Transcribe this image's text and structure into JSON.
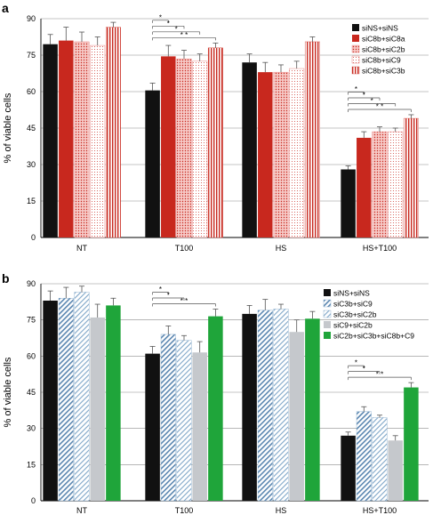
{
  "chart_data": [
    {
      "panel": "a",
      "type": "bar",
      "ylabel": "% of viable cells",
      "ylim": [
        0,
        90
      ],
      "yticks": [
        0,
        15,
        30,
        45,
        60,
        75,
        90
      ],
      "grid": true,
      "legend_placement": "top-right",
      "categories": [
        "NT",
        "T100",
        "HS",
        "HS+T100"
      ],
      "series": [
        {
          "name": "siNS+siNS",
          "color": "#111111",
          "pattern": "solid",
          "values": [
            79.5,
            60.5,
            72,
            28
          ],
          "errors": [
            4,
            3,
            3.5,
            1.5
          ]
        },
        {
          "name": "siC8b+siC8a",
          "color": "#c8281e",
          "pattern": "solid",
          "values": [
            81,
            74.5,
            68,
            41
          ],
          "errors": [
            5.5,
            4.5,
            4,
            2.5
          ]
        },
        {
          "name": "siC8b+siC2b",
          "color": "#e87a78",
          "pattern": "dots",
          "values": [
            80.5,
            73.5,
            68,
            43.5
          ],
          "errors": [
            4,
            3.5,
            3,
            2
          ]
        },
        {
          "name": "siC8b+siC9",
          "color": "#e36a66",
          "pattern": "light-dots",
          "values": [
            79,
            72.5,
            69.5,
            43.5
          ],
          "errors": [
            3.5,
            3,
            3,
            1.5
          ]
        },
        {
          "name": "siC8b+siC3b",
          "color": "#d2453c",
          "pattern": "vstripes",
          "values": [
            86.5,
            78,
            80.5,
            49
          ],
          "errors": [
            2,
            2,
            2,
            1.5
          ]
        }
      ],
      "significance": [
        {
          "category": "T100",
          "from": 0,
          "to": 1,
          "label": "*"
        },
        {
          "category": "T100",
          "from": 0,
          "to": 2,
          "label": "*"
        },
        {
          "category": "T100",
          "from": 0,
          "to": 3,
          "label": "*"
        },
        {
          "category": "T100",
          "from": 0,
          "to": 4,
          "label": "* *"
        },
        {
          "category": "HS+T100",
          "from": 0,
          "to": 1,
          "label": "*"
        },
        {
          "category": "HS+T100",
          "from": 0,
          "to": 2,
          "label": "*"
        },
        {
          "category": "HS+T100",
          "from": 0,
          "to": 3,
          "label": "*"
        },
        {
          "category": "HS+T100",
          "from": 0,
          "to": 4,
          "label": "* *"
        }
      ]
    },
    {
      "panel": "b",
      "type": "bar",
      "ylabel": "% of viable cells",
      "ylim": [
        0,
        90
      ],
      "yticks": [
        0,
        15,
        30,
        45,
        60,
        75,
        90
      ],
      "grid": true,
      "legend_placement": "top-right",
      "categories": [
        "NT",
        "T100",
        "HS",
        "HS+T100"
      ],
      "series": [
        {
          "name": "siNS+siNS",
          "color": "#111111",
          "pattern": "solid",
          "values": [
            83,
            61,
            77.5,
            27
          ],
          "errors": [
            4,
            3,
            3.5,
            1.5
          ]
        },
        {
          "name": "siC3b+siC9",
          "color": "#7fa6c8",
          "pattern": "diag",
          "values": [
            84,
            69,
            79,
            37
          ],
          "errors": [
            4.5,
            3.5,
            4.5,
            2
          ]
        },
        {
          "name": "siC3b+siC2b",
          "color": "#7fa6c8",
          "pattern": "diag-light",
          "values": [
            86.5,
            66.5,
            79.5,
            34.5
          ],
          "errors": [
            2.5,
            2,
            2,
            1
          ]
        },
        {
          "name": "siC9+siC2b",
          "color": "#c5c8cc",
          "pattern": "solid",
          "values": [
            76,
            61.5,
            70,
            25
          ],
          "errors": [
            5.5,
            4.5,
            5,
            2
          ]
        },
        {
          "name": "siC2b+siC3b+siC8b+C9",
          "color": "#1fa53a",
          "pattern": "solid",
          "values": [
            81,
            76.5,
            75.5,
            47
          ],
          "errors": [
            3,
            3,
            3,
            2
          ]
        }
      ],
      "significance": [
        {
          "category": "T100",
          "from": 0,
          "to": 1,
          "label": "*"
        },
        {
          "category": "T100",
          "from": 0,
          "to": 2,
          "label": "*"
        },
        {
          "category": "T100",
          "from": 0,
          "to": 4,
          "label": "* *"
        },
        {
          "category": "HS+T100",
          "from": 0,
          "to": 1,
          "label": "*"
        },
        {
          "category": "HS+T100",
          "from": 0,
          "to": 2,
          "label": "*"
        },
        {
          "category": "HS+T100",
          "from": 0,
          "to": 4,
          "label": "* *"
        }
      ]
    }
  ]
}
